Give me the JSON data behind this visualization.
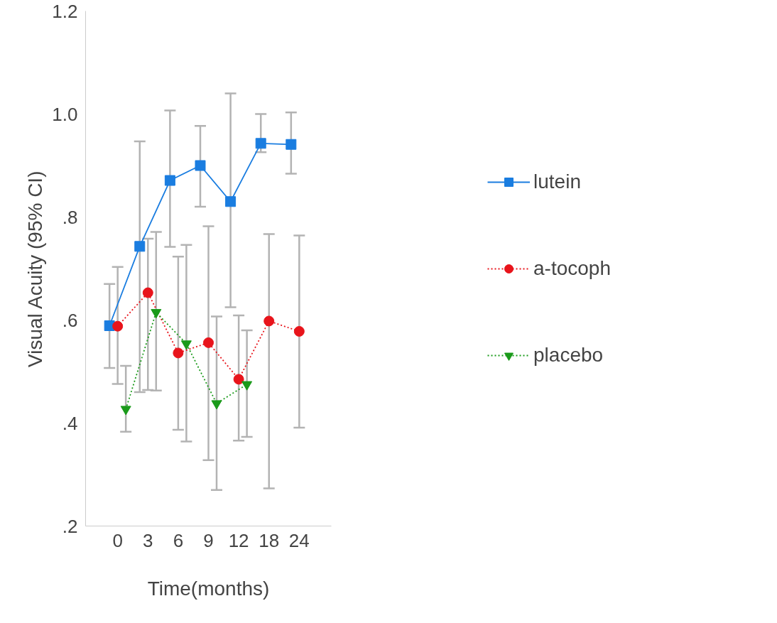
{
  "chart_data": {
    "type": "line",
    "xlabel": "Time(months)",
    "ylabel": "Visual Acuity (95% CI)",
    "categories": [
      "0",
      "3",
      "6",
      "9",
      "12",
      "18",
      "24"
    ],
    "ylim": [
      0.2,
      1.2
    ],
    "yticks": [
      {
        "value": 0.2,
        "label": ".2"
      },
      {
        "value": 0.4,
        "label": ".4"
      },
      {
        "value": 0.6,
        "label": ".6"
      },
      {
        "value": 0.8,
        "label": ".8"
      },
      {
        "value": 1.0,
        "label": "1.0"
      },
      {
        "value": 1.2,
        "label": "1.2"
      }
    ],
    "grid": false,
    "legend": "right",
    "series": [
      {
        "name": "lutein",
        "color": "#1a7de0",
        "marker": "square",
        "line_style": "solid",
        "values": [
          0.589,
          0.743,
          0.871,
          0.9,
          0.83,
          0.943,
          0.941
        ],
        "errors": [
          [
            0.507,
            0.67
          ],
          [
            0.46,
            0.947
          ],
          [
            0.742,
            1.007
          ],
          [
            0.82,
            0.977
          ],
          [
            0.625,
            1.04
          ],
          [
            0.926,
            1.0
          ],
          [
            0.884,
            1.003
          ]
        ]
      },
      {
        "name": "a-tocoph",
        "color": "#e8141b",
        "marker": "circle",
        "line_style": "dotted",
        "values": [
          0.588,
          0.653,
          0.536,
          0.556,
          0.485,
          0.598,
          0.578
        ],
        "errors": [
          [
            0.476,
            0.703
          ],
          [
            0.464,
            0.758
          ],
          [
            0.387,
            0.723
          ],
          [
            0.328,
            0.782
          ],
          [
            0.366,
            0.609
          ],
          [
            0.273,
            0.767
          ],
          [
            0.391,
            0.764
          ]
        ]
      },
      {
        "name": "placebo",
        "color": "#1a9a1a",
        "marker": "triangle",
        "line_style": "dotted",
        "values": [
          0.427,
          0.615,
          0.554,
          0.438,
          0.475,
          null,
          null
        ],
        "errors": [
          [
            0.383,
            0.511
          ],
          [
            0.463,
            0.771
          ],
          [
            0.364,
            0.746
          ],
          [
            0.27,
            0.607
          ],
          [
            0.373,
            0.58
          ],
          null,
          null
        ]
      }
    ]
  }
}
